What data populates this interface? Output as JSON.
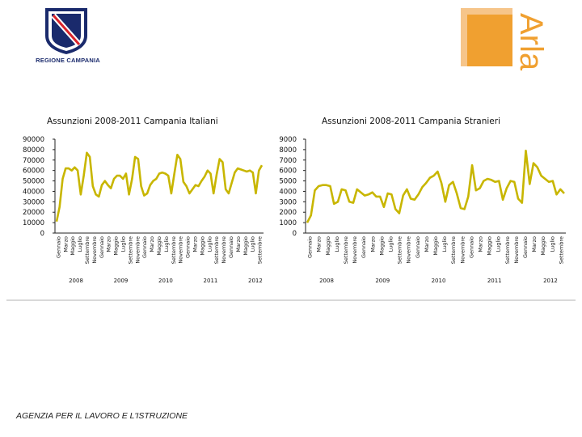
{
  "logos": {
    "left_caption": "REGIONE CAMPANIA",
    "right_text": "Arlas"
  },
  "footer": {
    "text": "AGENZIA PER IL LAVORO E L'ISTRUZIONE"
  },
  "colors": {
    "line": "#c8b600",
    "axis": "#222222",
    "logo_blue": "#1a2a6c",
    "logo_orange": "#f0a030"
  },
  "chart_data": [
    {
      "type": "line",
      "title": "Assunzioni 2008-2011 Campania Italiani",
      "ylim": [
        0,
        90000
      ],
      "yticks": [
        90000,
        80000,
        70000,
        60000,
        50000,
        40000,
        30000,
        20000,
        10000,
        0
      ],
      "x_tick_labels": [
        "Gennaio",
        "Marzo",
        "Maggio",
        "Luglio",
        "Settembre",
        "Novembre",
        "Gennaio",
        "Marzo",
        "Maggio",
        "Luglio",
        "Settembre",
        "Novembre",
        "Gennaio",
        "Marzo",
        "Maggio",
        "Luglio",
        "Settembre",
        "Novembre",
        "Gennaio",
        "Marzo",
        "Maggio",
        "Luglio",
        "Settembre",
        "Novembre",
        "Gennaio",
        "Marzo",
        "Maggio",
        "Luglio",
        "Settembre"
      ],
      "year_labels": [
        "2008",
        "2009",
        "2010",
        "2011",
        "2012"
      ],
      "series": [
        {
          "values": [
            11000,
            25000,
            52000,
            62000,
            62000,
            60000,
            63000,
            60000,
            37000,
            55000,
            77000,
            73000,
            45000,
            37000,
            35000,
            46000,
            50000,
            46000,
            43000,
            52000,
            55000,
            55000,
            52000,
            57000,
            37000,
            52000,
            73000,
            71000,
            45000,
            36000,
            38000,
            46000,
            50000,
            52000,
            57000,
            58000,
            57000,
            55000,
            38000,
            57000,
            75000,
            71000,
            49000,
            45000,
            38000,
            42000,
            46000,
            45000,
            50000,
            54000,
            60000,
            57000,
            38000,
            56000,
            71000,
            68000,
            42000,
            38000,
            48000,
            58000,
            62000,
            61000,
            60000,
            59000,
            60000,
            58000,
            38000,
            60000,
            65000
          ]
        }
      ]
    },
    {
      "type": "line",
      "title": "Assunzioni 2008-2011 Campania Stranieri",
      "ylim": [
        0,
        9000
      ],
      "yticks": [
        9000,
        8000,
        7000,
        6000,
        5000,
        4000,
        3000,
        2000,
        1000,
        0
      ],
      "x_tick_labels": [
        "Gennaio",
        "Marzo",
        "Maggio",
        "Luglio",
        "Settembre",
        "Novembre",
        "Gennaio",
        "Marzo",
        "Maggio",
        "Luglio",
        "Settembre",
        "Novembre",
        "Gennaio",
        "Marzo",
        "Maggio",
        "Luglio",
        "Settembre",
        "Novembre",
        "Gennaio",
        "Marzo",
        "Maggio",
        "Luglio",
        "Settembre",
        "Novembre",
        "Gennaio",
        "Marzo",
        "Maggio",
        "Luglio",
        "Settembre"
      ],
      "year_labels": [
        "2008",
        "2009",
        "2010",
        "2011",
        "2012"
      ],
      "series": [
        {
          "values": [
            1000,
            1700,
            4100,
            4500,
            4600,
            4600,
            4500,
            2800,
            3000,
            4200,
            4100,
            3000,
            2900,
            4200,
            3900,
            3600,
            3700,
            3900,
            3500,
            3500,
            2500,
            3800,
            3700,
            2300,
            1900,
            3600,
            4200,
            3300,
            3200,
            3700,
            4400,
            4800,
            5300,
            5500,
            5900,
            4800,
            3000,
            4600,
            4900,
            3800,
            2400,
            2300,
            3500,
            6500,
            4100,
            4300,
            5000,
            5200,
            5100,
            4900,
            5000,
            3200,
            4300,
            5000,
            4900,
            3300,
            2900,
            7900,
            4700,
            6700,
            6300,
            5500,
            5200,
            4900,
            5000,
            3700,
            4200,
            3800
          ]
        }
      ]
    }
  ]
}
